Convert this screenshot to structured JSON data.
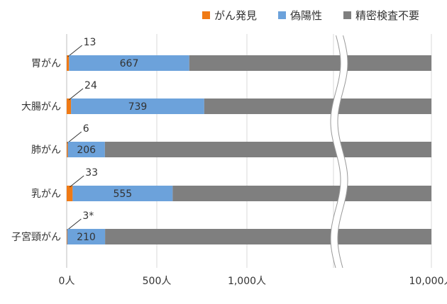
{
  "colors": {
    "cancer_found": "#F07A15",
    "false_positive": "#6CA2DB",
    "no_further_exam": "#7F7F7F",
    "axis": "#BFBFBF",
    "grid": "#D9D9D9",
    "text": "#333333"
  },
  "legend": [
    {
      "label": "がん発見",
      "color_key": "cancer_found"
    },
    {
      "label": "偽陽性",
      "color_key": "false_positive"
    },
    {
      "label": "精密検査不要",
      "color_key": "no_further_exam"
    }
  ],
  "chart_data": {
    "type": "bar",
    "orientation": "horizontal",
    "stacked": true,
    "categories": [
      "胃がん",
      "大腸がん",
      "肺がん",
      "乳がん",
      "子宮頸がん"
    ],
    "series": [
      {
        "name": "がん発見",
        "values": [
          13,
          24,
          6,
          33,
          3
        ],
        "labels": [
          "13",
          "24",
          "6",
          "33",
          "3*"
        ]
      },
      {
        "name": "偽陽性",
        "values": [
          667,
          739,
          206,
          555,
          210
        ]
      },
      {
        "name": "精密検査不要",
        "values": [
          9320,
          9237,
          9788,
          9412,
          9787
        ]
      }
    ],
    "x_ticks": [
      {
        "value": 0,
        "label": "0人"
      },
      {
        "value": 500,
        "label": "500人"
      },
      {
        "value": 1000,
        "label": "1,000人"
      },
      {
        "value": 10000,
        "label": "10,000人"
      }
    ],
    "axis_break": true,
    "xlim": [
      0,
      10000
    ],
    "grid": true,
    "legend_position": "top"
  }
}
